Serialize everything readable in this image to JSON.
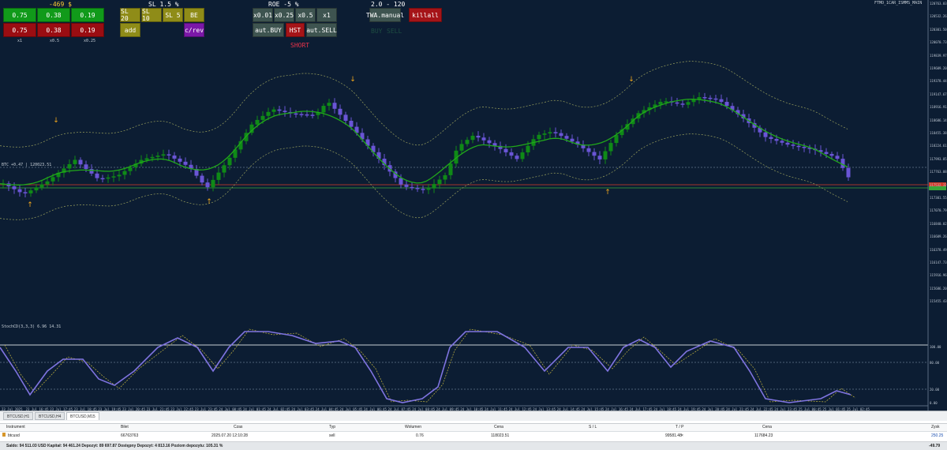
{
  "colors": {
    "bg": "#0c1d33",
    "bull": "#0f8a17",
    "bear": "#6a55d6",
    "ma": "#21a81a",
    "mablue": "#6b5fe0",
    "band": "#9aa15d",
    "arrow": "#f2a81d",
    "osc": "#7f74e0",
    "signal": "#c6b640"
  },
  "panel": {
    "pl_value": "-469 $",
    "sl_label": "SL 1.5 %",
    "roe_label": "ROE -5 %",
    "ratio_label": "2.0 - 120",
    "short_label": "SHORT",
    "buy_label": "BUY",
    "sell_label": "SELL",
    "buy_buttons": [
      "0.75",
      "0.38",
      "0.19"
    ],
    "sell_buttons": [
      "0.75",
      "0.38",
      "0.19"
    ],
    "lot_labels": [
      "x1",
      "x0.5",
      "x0.25"
    ],
    "sl_buttons": [
      "SL 20",
      "SL 10",
      "SL 5",
      "BE"
    ],
    "add_label": "add",
    "crev_label": "c/rev",
    "mult_buttons": [
      "x0.01",
      "x0.25",
      "x0.5",
      "x1"
    ],
    "aut_buy": "aut.BUY",
    "hst": "HST",
    "aut_sell": "aut.SELL",
    "twa_manual": "TWA.manual",
    "killall": "killall"
  },
  "chart_header": {
    "title": "BTCUSD,M15",
    "indicator_top": "FTMO_1CAR_ISMMS_MAIN"
  },
  "price_label": "BTC +0.47 | 120023.51",
  "osc_label": "StochCD(3,3,3) 6.96 14.31",
  "y_axis": [
    "120763.03",
    "120532.26",
    "120301.50",
    "120070.73",
    "119839.97",
    "119609.20",
    "119378.44",
    "119147.67",
    "118916.91",
    "118686.14",
    "118455.38",
    "118224.61",
    "117993.85",
    "117763.08",
    "117532.32",
    "117301.55",
    "117070.79",
    "116840.02",
    "116609.26",
    "116378.49",
    "116147.73",
    "115916.96",
    "115686.20",
    "115455.43"
  ],
  "osc_axis": [
    "100.00",
    "80.00",
    "20.00",
    "0.00"
  ],
  "x_axis": [
    "23 Jul 2025",
    "23 Jul 16:45",
    "23 Jul 17:45",
    "23 Jul 18:45",
    "23 Jul 19:45",
    "23 Jul 20:45",
    "23 Jul 21:45",
    "23 Jul 22:45",
    "23 Jul 23:45",
    "24 Jul 00:45",
    "24 Jul 01:45",
    "24 Jul 02:45",
    "24 Jul 03:45",
    "24 Jul 04:45",
    "24 Jul 05:45",
    "24 Jul 06:45",
    "24 Jul 07:45",
    "24 Jul 08:45",
    "24 Jul 09:45",
    "24 Jul 10:45",
    "24 Jul 11:45",
    "24 Jul 12:45",
    "24 Jul 13:45",
    "24 Jul 14:45",
    "24 Jul 15:45",
    "24 Jul 16:45",
    "24 Jul 17:45",
    "24 Jul 18:45",
    "24 Jul 19:45",
    "24 Jul 20:45",
    "24 Jul 21:45",
    "24 Jul 22:45",
    "24 Jul 23:45",
    "25 Jul 00:45",
    "25 Jul 01:45",
    "25 Jul 02:45"
  ],
  "tabs": [
    "BTCUSD,H1",
    "BTCUSD,H4",
    "BTCUSD,M15"
  ],
  "table": {
    "headers": [
      "Instrument",
      "Bilet",
      "Czas",
      "Typ",
      "Wolumen",
      "Cena",
      "S / L",
      "T / P",
      "Cena",
      "Zysk"
    ],
    "row": {
      "instrument": "btcusd",
      "ticket": "66763763",
      "time": "2025.07.20 12:10:28",
      "type": "sell",
      "volume": "0.76",
      "price": "118023.51",
      "sl": "",
      "tp": "99581.48",
      "close_tp": "×",
      "cur_price": "117684.23",
      "profit": "250.25"
    },
    "saldo": "Saldo: 94 511.03 USD  Kapitał: 94 461.24  Depozyt: 89 697.87  Dostępny Depozyt: 4 813.16  Poziom depozytu: 105.31 %",
    "total": "-49.79"
  }
}
